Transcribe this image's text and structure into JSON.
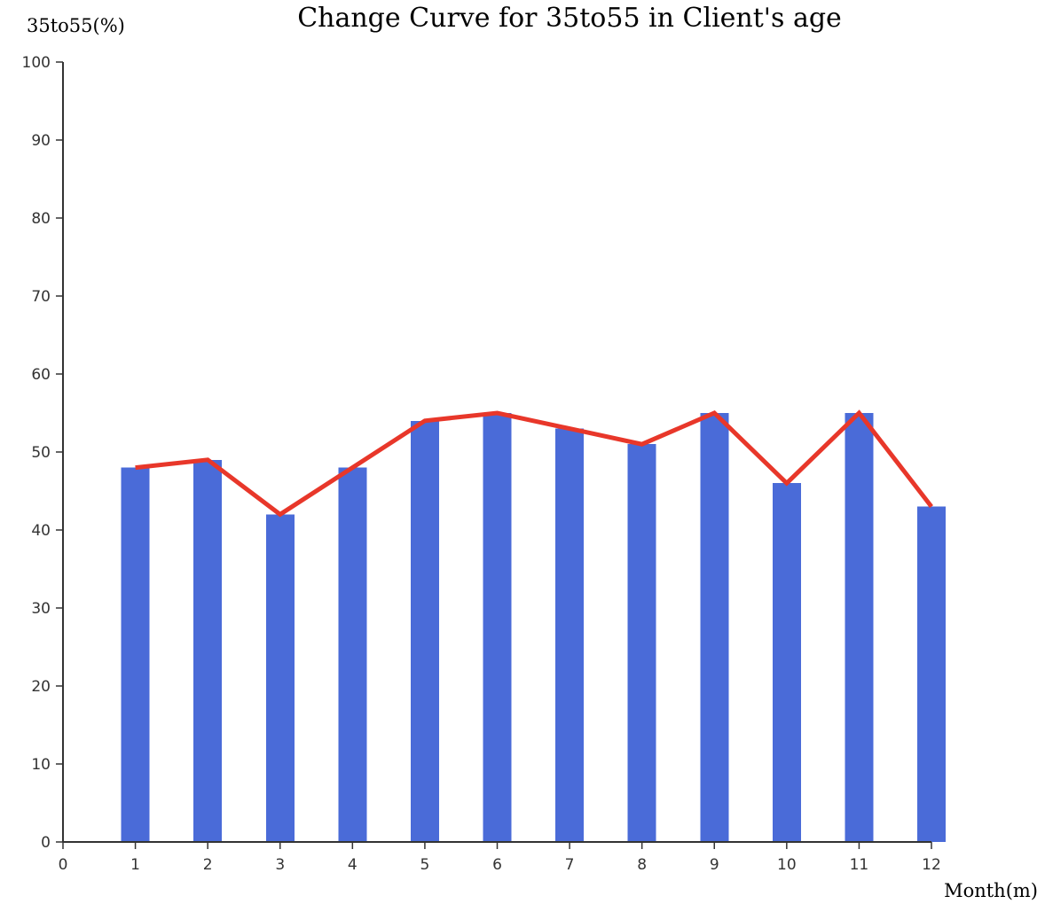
{
  "chart_data": {
    "type": "bar",
    "title": "Change Curve for 35to55 in Client's age",
    "xlabel": "Month(m)",
    "ylabel": "35to55(%)",
    "x_ticks": [
      "0",
      "1",
      "2",
      "3",
      "4",
      "5",
      "6",
      "7",
      "8",
      "9",
      "10",
      "11",
      "12"
    ],
    "categories": [
      "1",
      "2",
      "3",
      "4",
      "5",
      "6",
      "7",
      "8",
      "9",
      "10",
      "11",
      "12"
    ],
    "values": [
      48,
      49,
      42,
      48,
      54,
      55,
      53,
      51,
      55,
      46,
      55,
      43
    ],
    "overlay_line": true,
    "ylim": [
      0,
      100
    ],
    "xlim": [
      0,
      12
    ],
    "y_ticks": [
      0,
      10,
      20,
      30,
      40,
      50,
      60,
      70,
      80,
      90,
      100
    ],
    "grid": false,
    "colors": {
      "bar": "#4a6bd8",
      "line": "#e8372a"
    }
  }
}
